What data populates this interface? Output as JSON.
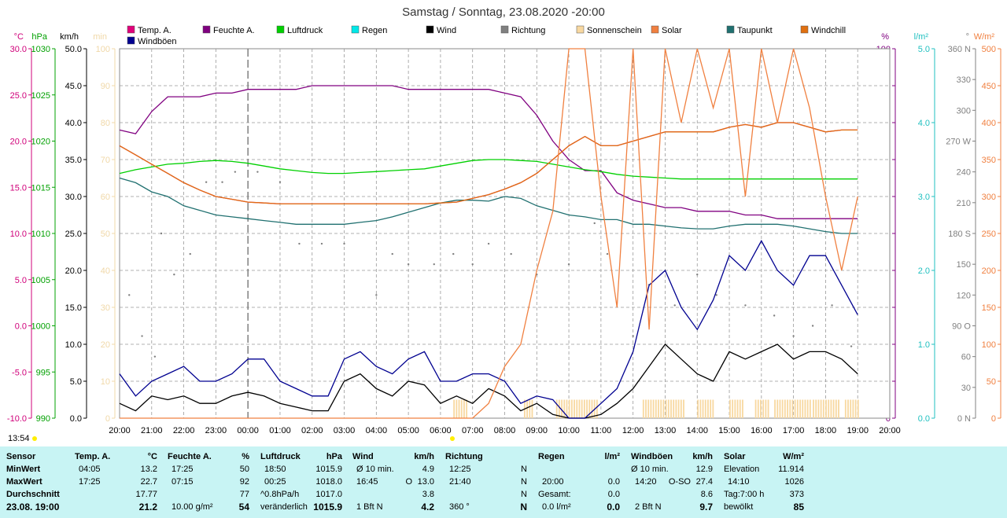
{
  "chart_data": {
    "type": "line",
    "title": "Samstag / Sonntag, 23.08.2020  -20:00",
    "x_ticks": [
      "20:00",
      "21:00",
      "22:00",
      "23:00",
      "00:00",
      "01:00",
      "02:00",
      "03:00",
      "04:00",
      "05:00",
      "06:00",
      "07:00",
      "08:00",
      "09:00",
      "10:00",
      "11:00",
      "12:00",
      "13:00",
      "14:00",
      "15:00",
      "16:00",
      "17:00",
      "18:00",
      "19:00",
      "20:00"
    ],
    "sun_times": [
      "13:54"
    ],
    "legend": [
      {
        "name": "Temp. A.",
        "color": "#e0007a"
      },
      {
        "name": "Feuchte A.",
        "color": "#800080"
      },
      {
        "name": "Luftdruck",
        "color": "#00d000"
      },
      {
        "name": "Regen",
        "color": "#00e8e8"
      },
      {
        "name": "Wind",
        "color": "#000000"
      },
      {
        "name": "Richtung",
        "color": "#808080"
      },
      {
        "name": "Sonnenschein",
        "color": "#f8d8a0"
      },
      {
        "name": "Solar",
        "color": "#f08040"
      },
      {
        "name": "Taupunkt",
        "color": "#207070"
      },
      {
        "name": "Windchill",
        "color": "#e07010"
      },
      {
        "name": "Windböen",
        "color": "#000090"
      }
    ],
    "axes": [
      {
        "unit": "°C",
        "color": "#d0007a",
        "ticks": [
          "30.0",
          "25.0",
          "20.0",
          "15.0",
          "10.0",
          "5.0",
          "0.0",
          "-5.0",
          "-10.0"
        ]
      },
      {
        "unit": "hPa",
        "color": "#00a000",
        "ticks": [
          "1030",
          "1025",
          "1020",
          "1015",
          "1010",
          "1005",
          "1000",
          "995",
          "990"
        ]
      },
      {
        "unit": "km/h",
        "color": "#000000",
        "ticks": [
          "50.0",
          "45.0",
          "40.0",
          "35.0",
          "30.0",
          "25.0",
          "20.0",
          "15.0",
          "10.0",
          "5.0",
          "0.0"
        ]
      },
      {
        "unit": "min",
        "color": "#f0d8a8",
        "ticks": [
          "100",
          "90",
          "80",
          "70",
          "60",
          "50",
          "40",
          "30",
          "20",
          "10",
          "0"
        ]
      },
      {
        "unit": "%",
        "color": "#800080",
        "ticks": [
          "100",
          "90",
          "80",
          "70",
          "60",
          "50",
          "40",
          "30",
          "20",
          "10",
          "0"
        ]
      },
      {
        "unit": "l/m²",
        "color": "#20c0c0",
        "ticks": [
          "5.0",
          "4.0",
          "3.0",
          "2.0",
          "1.0",
          "0.0"
        ]
      },
      {
        "unit": "°",
        "color": "#808080",
        "ticks": [
          "360 N",
          "330",
          "300",
          "270 W",
          "240",
          "210",
          "180 S",
          "150",
          "120",
          "90  O",
          "60",
          "30",
          "0   N"
        ]
      },
      {
        "unit": "W/m²",
        "color": "#f08040",
        "ticks": [
          "500",
          "450",
          "400",
          "350",
          "300",
          "250",
          "200",
          "150",
          "100",
          "50",
          "0"
        ]
      }
    ],
    "x": [
      0,
      0.5,
      1,
      1.5,
      2,
      2.5,
      3,
      3.5,
      4,
      4.5,
      5,
      5.5,
      6,
      6.5,
      7,
      7.5,
      8,
      8.5,
      9,
      9.5,
      10,
      10.5,
      11,
      11.5,
      12,
      12.5,
      13,
      13.5,
      14,
      14.5,
      15,
      15.5,
      16,
      16.5,
      17,
      17.5,
      18,
      18.5,
      19,
      19.5,
      20,
      20.5,
      21,
      21.5,
      22,
      22.5,
      23
    ],
    "series": [
      {
        "name": "Temp. A.",
        "axis": 0,
        "color": "#e0007a",
        "values": [
          19.5,
          18.5,
          17.5,
          16.5,
          15.5,
          14.7,
          14.0,
          13.7,
          13.4,
          13.3,
          13.2,
          13.2,
          13.2,
          13.2,
          13.2,
          13.2,
          13.2,
          13.2,
          13.2,
          13.2,
          13.3,
          13.4,
          13.8,
          14.2,
          14.8,
          15.5,
          16.5,
          18.0,
          19.5,
          20.5,
          19.5,
          19.5,
          20.0,
          20.5,
          21.0,
          21.0,
          21.0,
          21.0,
          21.5,
          21.8,
          21.5,
          22.0,
          22.0,
          21.5,
          21.0,
          21.2,
          21.2
        ]
      },
      {
        "name": "Feuchte A.",
        "axis": 4,
        "color": "#800080",
        "values": [
          78,
          77,
          83,
          87,
          87,
          87,
          88,
          88,
          89,
          89,
          89,
          89,
          90,
          90,
          90,
          90,
          90,
          90,
          89,
          89,
          89,
          89,
          89,
          89,
          88,
          87,
          82,
          75,
          70,
          67,
          67,
          61,
          59,
          58,
          57,
          57,
          56,
          56,
          56,
          55,
          55,
          54,
          54,
          54,
          54,
          54,
          54
        ]
      },
      {
        "name": "Luftdruck",
        "axis": 1,
        "color": "#00d000",
        "values": [
          1016.5,
          1016.9,
          1017.2,
          1017.5,
          1017.6,
          1017.8,
          1017.9,
          1017.8,
          1017.6,
          1017.3,
          1017.0,
          1016.8,
          1016.6,
          1016.5,
          1016.5,
          1016.6,
          1016.7,
          1016.8,
          1016.9,
          1017.0,
          1017.3,
          1017.6,
          1017.9,
          1018.0,
          1018.0,
          1017.9,
          1017.8,
          1017.5,
          1017.2,
          1016.9,
          1016.7,
          1016.4,
          1016.2,
          1016.1,
          1016.0,
          1015.9,
          1015.9,
          1015.9,
          1015.9,
          1015.9,
          1015.9,
          1015.9,
          1015.9,
          1015.9,
          1015.9,
          1015.9,
          1015.9
        ]
      },
      {
        "name": "Taupunkt",
        "axis": 0,
        "color": "#207070",
        "values": [
          16.0,
          15.5,
          14.5,
          14.0,
          13.0,
          12.5,
          12.0,
          11.8,
          11.6,
          11.4,
          11.2,
          11.0,
          11.0,
          11.0,
          11.0,
          11.2,
          11.4,
          11.8,
          12.3,
          12.8,
          13.3,
          13.6,
          13.6,
          13.5,
          14.0,
          13.8,
          13.0,
          12.5,
          12.0,
          11.8,
          11.5,
          11.5,
          11.0,
          11.0,
          10.8,
          10.6,
          10.5,
          10.5,
          10.8,
          11.0,
          11.0,
          11.0,
          10.8,
          10.5,
          10.2,
          10.0,
          10.0
        ]
      },
      {
        "name": "Wind",
        "axis": 2,
        "color": "#000000",
        "values": [
          2.0,
          1.0,
          3.0,
          2.5,
          3.0,
          2.0,
          2.0,
          3.0,
          3.5,
          3.0,
          2.0,
          1.5,
          1.0,
          1.0,
          5.0,
          6.0,
          4.0,
          3.0,
          5.0,
          4.5,
          2.0,
          3.0,
          2.0,
          4.0,
          3.0,
          1.0,
          2.0,
          0.5,
          0.0,
          0.0,
          0.5,
          2.0,
          4.0,
          7.0,
          10.0,
          8.0,
          6.0,
          5.0,
          9.0,
          8.0,
          9.0,
          10.0,
          8.0,
          9.0,
          9.0,
          8.0,
          6.0
        ]
      },
      {
        "name": "Windböen",
        "axis": 2,
        "color": "#000090",
        "values": [
          6.0,
          3.0,
          5.0,
          6.0,
          7.0,
          5.0,
          5.0,
          6.0,
          8.0,
          8.0,
          5.0,
          4.0,
          3.0,
          3.0,
          8.0,
          9.0,
          7.0,
          6.0,
          8.0,
          9.0,
          5.0,
          5.0,
          6.0,
          6.0,
          5.0,
          2.0,
          3.0,
          2.5,
          0.0,
          0.0,
          2.0,
          4.0,
          9.0,
          18.0,
          20.0,
          15.0,
          12.0,
          16.0,
          22.0,
          20.0,
          24.0,
          20.0,
          18.0,
          22.0,
          22.0,
          18.0,
          14.0
        ]
      },
      {
        "name": "Windchill",
        "axis": 0,
        "color": "#e07010",
        "values": [
          19.5,
          18.5,
          17.5,
          16.5,
          15.5,
          14.7,
          14.0,
          13.7,
          13.4,
          13.3,
          13.2,
          13.2,
          13.2,
          13.2,
          13.2,
          13.2,
          13.2,
          13.2,
          13.2,
          13.2,
          13.3,
          13.4,
          13.8,
          14.2,
          14.8,
          15.5,
          16.5,
          18.0,
          19.5,
          20.5,
          19.5,
          19.5,
          20.0,
          20.5,
          21.0,
          21.0,
          21.0,
          21.0,
          21.5,
          21.8,
          21.5,
          22.0,
          22.0,
          21.5,
          21.0,
          21.2,
          21.2
        ]
      },
      {
        "name": "Solar",
        "axis": 7,
        "color": "#f08040",
        "values": [
          0,
          0,
          0,
          0,
          0,
          0,
          0,
          0,
          0,
          0,
          0,
          0,
          0,
          0,
          0,
          0,
          0,
          0,
          0,
          0,
          0,
          0,
          0,
          20,
          70,
          100,
          200,
          280,
          500,
          500,
          300,
          150,
          500,
          120,
          500,
          400,
          500,
          420,
          500,
          300,
          500,
          400,
          500,
          420,
          300,
          200,
          300
        ]
      }
    ],
    "direction_dots": [
      {
        "x": 0.3,
        "deg": 120
      },
      {
        "x": 0.7,
        "deg": 80
      },
      {
        "x": 1.1,
        "deg": 60
      },
      {
        "x": 1.3,
        "deg": 180
      },
      {
        "x": 1.7,
        "deg": 140
      },
      {
        "x": 2.2,
        "deg": 160
      },
      {
        "x": 2.7,
        "deg": 230
      },
      {
        "x": 3.2,
        "deg": 230
      },
      {
        "x": 3.6,
        "deg": 240
      },
      {
        "x": 4.3,
        "deg": 240
      },
      {
        "x": 5.0,
        "deg": 230
      },
      {
        "x": 5.6,
        "deg": 170
      },
      {
        "x": 6.3,
        "deg": 170
      },
      {
        "x": 7.0,
        "deg": 170
      },
      {
        "x": 8.0,
        "deg": 120
      },
      {
        "x": 8.5,
        "deg": 160
      },
      {
        "x": 9.0,
        "deg": 150
      },
      {
        "x": 9.8,
        "deg": 150
      },
      {
        "x": 10.4,
        "deg": 160
      },
      {
        "x": 11.0,
        "deg": 150
      },
      {
        "x": 11.5,
        "deg": 170
      },
      {
        "x": 12.2,
        "deg": 160
      },
      {
        "x": 13.0,
        "deg": 140
      },
      {
        "x": 14.0,
        "deg": 150
      },
      {
        "x": 14.8,
        "deg": 190
      },
      {
        "x": 15.2,
        "deg": 160
      },
      {
        "x": 16.0,
        "deg": 80
      },
      {
        "x": 16.5,
        "deg": 130
      },
      {
        "x": 17.3,
        "deg": 110
      },
      {
        "x": 18.0,
        "deg": 140
      },
      {
        "x": 18.6,
        "deg": 120
      },
      {
        "x": 19.5,
        "deg": 110
      },
      {
        "x": 20.4,
        "deg": 100
      },
      {
        "x": 21.0,
        "deg": 80
      },
      {
        "x": 21.6,
        "deg": 90
      },
      {
        "x": 22.2,
        "deg": 110
      },
      {
        "x": 22.8,
        "deg": 70
      }
    ],
    "sunshine_bars": [
      {
        "from": 10.4,
        "to": 10.8
      },
      {
        "from": 12.6,
        "to": 12.9
      },
      {
        "from": 13.6,
        "to": 14.9
      },
      {
        "from": 16.3,
        "to": 17.6
      },
      {
        "from": 18.0,
        "to": 18.5
      },
      {
        "from": 19.0,
        "to": 19.4
      },
      {
        "from": 19.8,
        "to": 20.2
      },
      {
        "from": 20.4,
        "to": 21.5
      },
      {
        "from": 21.6,
        "to": 22.4
      },
      {
        "from": 22.6,
        "to": 23.0
      }
    ]
  },
  "table": {
    "row_labels": [
      "Sensor",
      "MinWert",
      "MaxWert",
      "Durchschnitt",
      "23.08. 19:00"
    ],
    "temp": {
      "header": "Temp. A.",
      "unit": "°C",
      "min_time": "04:05",
      "min": "13.2",
      "max_time": "17:25",
      "max": "22.7",
      "avg": "17.77",
      "cur": "21.2"
    },
    "hum": {
      "header": "Feuchte A.",
      "unit": "%",
      "min_time": "17:25",
      "min": "50",
      "max_time": "07:15",
      "max": "92",
      "avg": "77",
      "abs": "10.00 g/m²",
      "cur": "54"
    },
    "press": {
      "header": "Luftdruck",
      "unit": "hPa",
      "min_time": "18:50",
      "min": "1015.9",
      "max_time": "00:25",
      "max": "1018.0",
      "trend": "^0.8hPa/h",
      "avg": "1017.0",
      "state": "veränderlich",
      "cur": "1015.9"
    },
    "wind": {
      "header": "Wind",
      "unit": "km/h",
      "min_label": "Ø 10 min.",
      "min": "4.9",
      "max_time": "16:45",
      "max_dir": "O",
      "max": "13.0",
      "avg": "3.8",
      "bft": "1 Bft N",
      "cur": "4.2"
    },
    "dir": {
      "header": "Richtung",
      "min_time": "12:25",
      "min": "N",
      "max_time": "21:40",
      "max": "N",
      "avg": "N",
      "deg": "360 °",
      "cur": "N"
    },
    "rain": {
      "header": "Regen",
      "unit": "l/m²",
      "max_time": "20:00",
      "max": "0.0",
      "total_label": "Gesamt:",
      "total": "0.0",
      "rate": "0.0 l/m²",
      "cur": "0.0"
    },
    "gust": {
      "header": "Windböen",
      "unit": "km/h",
      "min_label": "Ø 10 min.",
      "min": "12.9",
      "max_time": "14:20",
      "max_dir": "O-SO",
      "max": "27.4",
      "avg": "8.6",
      "bft": "2 Bft N",
      "cur": "9.7"
    },
    "solar": {
      "header": "Solar",
      "unit": "W/m²",
      "elev_label": "Elevation",
      "elev": "11.914",
      "max_time": "14:10",
      "max": "1026",
      "day_label": "Tag:7:00 h",
      "day": "373",
      "cloud_label": "bewölkt",
      "cur": "85"
    }
  }
}
